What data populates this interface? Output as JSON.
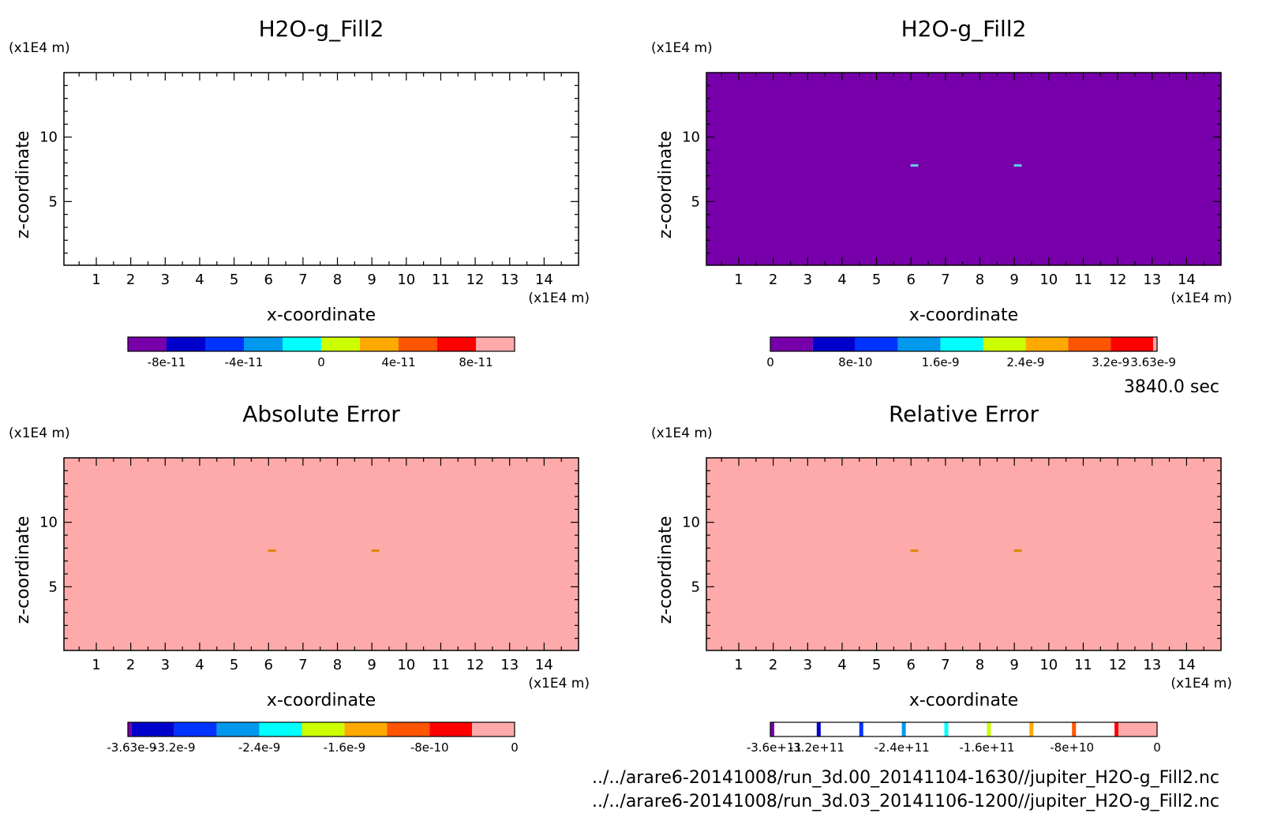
{
  "time_label": "3840.0 sec",
  "files": [
    "../../arare6-20141008/run_3d.00_20141104-1630//jupiter_H2O-g_Fill2.nc",
    "../../arare6-20141008/run_3d.03_20141106-1200//jupiter_H2O-g_Fill2.nc"
  ],
  "chart_data": [
    {
      "type": "heatmap",
      "title": "H2O-g_Fill2",
      "xlabel": "x-coordinate",
      "ylabel": "z-coordinate",
      "x_unit": "(x1E4 m)",
      "y_unit": "(x1E4 m)",
      "xlim": [
        0.06,
        15.0
      ],
      "ylim": [
        0.06,
        15.0
      ],
      "x_ticks": [
        1,
        2,
        3,
        4,
        5,
        6,
        7,
        8,
        9,
        10,
        11,
        12,
        13,
        14
      ],
      "y_ticks": [
        5,
        10
      ],
      "background_fill": "#ffffff",
      "features": [],
      "colorbar": {
        "colors": [
          "#7700aa",
          "#0000cc",
          "#0033ff",
          "#0099ee",
          "#00ffff",
          "#ccff00",
          "#ffaa00",
          "#ff5500",
          "#ff0000",
          "#ffaaaa"
        ],
        "bands": "equal",
        "tick_labels": [
          "-8e-11",
          "-4e-11",
          "0",
          "4e-11",
          "8e-11"
        ],
        "tick_positions": [
          0.1,
          0.3,
          0.5,
          0.7,
          0.9
        ]
      }
    },
    {
      "type": "heatmap",
      "title": "H2O-g_Fill2",
      "xlabel": "x-coordinate",
      "ylabel": "z-coordinate",
      "x_unit": "(x1E4 m)",
      "y_unit": "(x1E4 m)",
      "xlim": [
        0.06,
        15.0
      ],
      "ylim": [
        0.06,
        15.0
      ],
      "x_ticks": [
        1,
        2,
        3,
        4,
        5,
        6,
        7,
        8,
        9,
        10,
        11,
        12,
        13,
        14
      ],
      "y_ticks": [
        5,
        10
      ],
      "background_fill": "#7700aa",
      "features": [
        {
          "x": 6.1,
          "z": 7.8,
          "color": "#66ccee"
        },
        {
          "x": 9.1,
          "z": 7.8,
          "color": "#66ccee"
        }
      ],
      "colorbar": {
        "colors": [
          "#7700aa",
          "#0000cc",
          "#0033ff",
          "#0099ee",
          "#00ffff",
          "#ccff00",
          "#ffaa00",
          "#ff5500",
          "#ff0000",
          "#ffaaaa"
        ],
        "bands": [
          0,
          0.11,
          0.22,
          0.33,
          0.44,
          0.55,
          0.66,
          0.77,
          0.88,
          0.99,
          1.0
        ],
        "tick_labels": [
          "0",
          "8e-10",
          "1.6e-9",
          "2.4e-9",
          "3.2e-9",
          "3.63e-9"
        ],
        "tick_positions": [
          0.0,
          0.22,
          0.44,
          0.66,
          0.88,
          0.99
        ]
      }
    },
    {
      "type": "heatmap",
      "title": "Absolute Error",
      "xlabel": "x-coordinate",
      "ylabel": "z-coordinate",
      "x_unit": "(x1E4 m)",
      "y_unit": "(x1E4 m)",
      "xlim": [
        0.06,
        15.0
      ],
      "ylim": [
        0.06,
        15.0
      ],
      "x_ticks": [
        1,
        2,
        3,
        4,
        5,
        6,
        7,
        8,
        9,
        10,
        11,
        12,
        13,
        14
      ],
      "y_ticks": [
        5,
        10
      ],
      "background_fill": "#ffaaaa",
      "features": [
        {
          "x": 6.1,
          "z": 7.8,
          "color": "#dd8800"
        },
        {
          "x": 9.1,
          "z": 7.8,
          "color": "#dd8800"
        }
      ],
      "colorbar": {
        "colors": [
          "#7700aa",
          "#0000cc",
          "#0033ff",
          "#0099ee",
          "#00ffff",
          "#ccff00",
          "#ffaa00",
          "#ff5500",
          "#ff0000",
          "#ffaaaa"
        ],
        "bands": [
          0,
          0.01,
          0.12,
          0.23,
          0.34,
          0.45,
          0.56,
          0.67,
          0.78,
          0.89,
          1.0
        ],
        "tick_labels": [
          "-3.63e-9",
          "-3.2e-9",
          "-2.4e-9",
          "-1.6e-9",
          "-8e-10",
          "0"
        ],
        "tick_positions": [
          0.01,
          0.12,
          0.34,
          0.56,
          0.78,
          1.0
        ]
      }
    },
    {
      "type": "heatmap",
      "title": "Relative Error",
      "xlabel": "x-coordinate",
      "ylabel": "z-coordinate",
      "x_unit": "(x1E4 m)",
      "y_unit": "(x1E4 m)",
      "xlim": [
        0.06,
        15.0
      ],
      "ylim": [
        0.06,
        15.0
      ],
      "x_ticks": [
        1,
        2,
        3,
        4,
        5,
        6,
        7,
        8,
        9,
        10,
        11,
        12,
        13,
        14
      ],
      "y_ticks": [
        5,
        10
      ],
      "background_fill": "#ffaaaa",
      "features": [
        {
          "x": 6.1,
          "z": 7.8,
          "color": "#dd8800"
        },
        {
          "x": 9.1,
          "z": 7.8,
          "color": "#dd8800"
        }
      ],
      "colorbar": {
        "colors": [
          "#7700aa",
          "#0000cc",
          "#0033ff",
          "#0099ee",
          "#00ffff",
          "#ccff00",
          "#ffaa00",
          "#ff5500",
          "#ff0000",
          "#ffaaaa"
        ],
        "bands": "lines",
        "line_positions": [
          0.0,
          0.12,
          0.23,
          0.34,
          0.45,
          0.56,
          0.67,
          0.78,
          0.89
        ],
        "tick_labels": [
          "-3.6e+11",
          "-3.2e+11",
          "-2.4e+11",
          "-1.6e+11",
          "-8e+10",
          "0"
        ],
        "tick_positions": [
          0.01,
          0.12,
          0.34,
          0.56,
          0.78,
          1.0
        ]
      }
    }
  ]
}
